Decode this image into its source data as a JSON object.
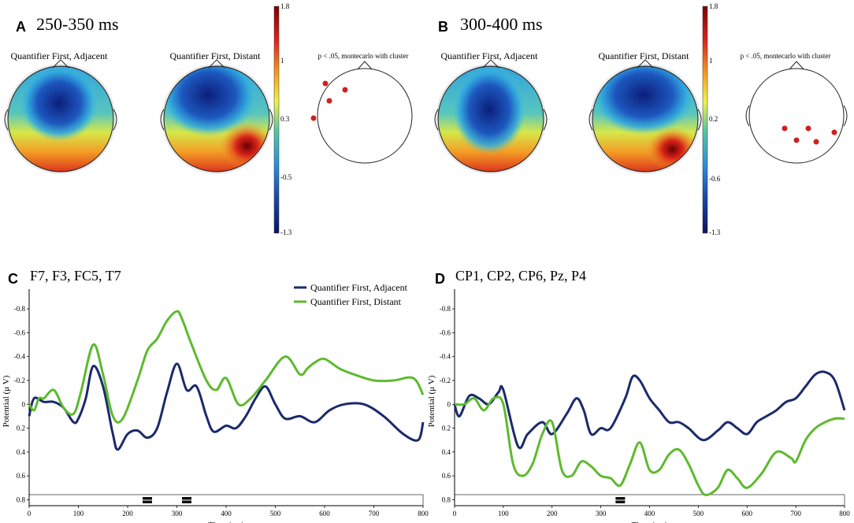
{
  "colors": {
    "adjacent": "#1b2a6b",
    "distant": "#5dba2f"
  },
  "panel_a": {
    "letter": "A",
    "title": "250-350 ms",
    "map_left_title": "Quantifier First, Adjacent",
    "map_right_title": "Quantifier First, Distant",
    "sig_title": "p < .05, montecarlo with cluster",
    "colorbar_labels": [
      "1.8",
      "1",
      "0.3",
      "-0.5",
      "-1.3"
    ]
  },
  "panel_b": {
    "letter": "B",
    "title": "300-400 ms",
    "map_left_title": "Quantifier First, Adjacent",
    "map_right_title": "Quantifier First, Distant",
    "sig_title": "p < .05, montecarlo with cluster",
    "colorbar_labels": [
      "1.8",
      "1",
      "0.2",
      "-0.6",
      "-1.3"
    ]
  },
  "chart_data": [
    {
      "type": "line",
      "panel": "C",
      "title": "F7, F3, FC5, T7",
      "xlabel": "Time (ms)",
      "ylabel": "Potential (μ V)",
      "xlim": [
        0,
        800
      ],
      "ylim": [
        -0.9,
        0.85
      ],
      "y_inverted": true,
      "xticks": [
        "0",
        "100",
        "200",
        "300",
        "400",
        "500",
        "600",
        "700",
        "800"
      ],
      "yticks": [
        "-0.8",
        "-0.6",
        "-0.4",
        "-0.2",
        "0",
        "0.2",
        "0.4",
        "0.6",
        "0.8"
      ],
      "legend": [
        "Quantifier First, Adjacent",
        "Quantifier First, Distant"
      ],
      "significant_windows_ms": [
        240,
        320
      ],
      "series": [
        {
          "name": "Quantifier First, Adjacent",
          "x": [
            0,
            10,
            30,
            50,
            70,
            90,
            100,
            115,
            130,
            150,
            170,
            180,
            200,
            220,
            240,
            260,
            280,
            300,
            320,
            340,
            360,
            375,
            400,
            420,
            440,
            460,
            480,
            500,
            520,
            550,
            580,
            610,
            640,
            680,
            720,
            760,
            790,
            800
          ],
          "y": [
            0.1,
            -0.05,
            -0.02,
            -0.02,
            0.03,
            0.15,
            0.12,
            -0.05,
            -0.32,
            -0.15,
            0.25,
            0.38,
            0.25,
            0.22,
            0.28,
            0.2,
            -0.1,
            -0.34,
            -0.12,
            -0.15,
            0.1,
            0.23,
            0.18,
            0.2,
            0.1,
            -0.05,
            -0.15,
            0.0,
            0.12,
            0.1,
            0.15,
            0.05,
            0.0,
            0.0,
            0.1,
            0.25,
            0.3,
            0.15
          ]
        },
        {
          "name": "Quantifier First, Distant",
          "x": [
            0,
            10,
            20,
            30,
            50,
            70,
            90,
            105,
            130,
            150,
            170,
            190,
            220,
            240,
            260,
            280,
            300,
            310,
            330,
            360,
            380,
            400,
            425,
            450,
            480,
            520,
            550,
            565,
            580,
            600,
            630,
            660,
            700,
            740,
            780,
            800
          ],
          "y": [
            0.0,
            0.05,
            -0.05,
            -0.05,
            -0.12,
            0.03,
            0.08,
            -0.1,
            -0.5,
            -0.25,
            0.1,
            0.12,
            -0.2,
            -0.45,
            -0.55,
            -0.7,
            -0.78,
            -0.72,
            -0.5,
            -0.2,
            -0.12,
            -0.22,
            0.0,
            -0.05,
            -0.2,
            -0.4,
            -0.25,
            -0.3,
            -0.35,
            -0.38,
            -0.3,
            -0.25,
            -0.2,
            -0.2,
            -0.22,
            -0.08
          ]
        }
      ]
    },
    {
      "type": "line",
      "panel": "D",
      "title": "CP1, CP2, CP6, Pz, P4",
      "xlabel": "Time (ms)",
      "ylabel": "Potential (μ V)",
      "xlim": [
        0,
        800
      ],
      "ylim": [
        -0.9,
        0.85
      ],
      "y_inverted": true,
      "xticks": [
        "0",
        "100",
        "200",
        "300",
        "400",
        "500",
        "600",
        "700",
        "800"
      ],
      "yticks": [
        "-0.8",
        "-0.6",
        "-0.4",
        "-0.2",
        "0",
        "0.2",
        "0.4",
        "0.6",
        "0.8"
      ],
      "significant_windows_ms": [
        340
      ],
      "series": [
        {
          "name": "Quantifier First, Adjacent",
          "x": [
            0,
            10,
            30,
            50,
            70,
            90,
            100,
            130,
            150,
            180,
            200,
            230,
            250,
            265,
            280,
            300,
            320,
            350,
            365,
            380,
            400,
            420,
            440,
            460,
            480,
            510,
            540,
            560,
            580,
            600,
            620,
            640,
            660,
            680,
            700,
            720,
            740,
            760,
            780,
            800
          ],
          "y": [
            0.0,
            0.1,
            -0.07,
            -0.05,
            0.0,
            -0.1,
            -0.12,
            0.35,
            0.25,
            0.15,
            0.25,
            0.08,
            -0.05,
            0.05,
            0.25,
            0.2,
            0.2,
            -0.05,
            -0.23,
            -0.2,
            -0.05,
            0.05,
            0.15,
            0.15,
            0.2,
            0.3,
            0.22,
            0.15,
            0.2,
            0.25,
            0.15,
            0.1,
            0.05,
            -0.02,
            -0.05,
            -0.15,
            -0.25,
            -0.27,
            -0.2,
            0.05
          ]
        },
        {
          "name": "Quantifier First, Distant",
          "x": [
            0,
            20,
            40,
            60,
            80,
            100,
            120,
            140,
            160,
            180,
            200,
            220,
            240,
            260,
            280,
            300,
            320,
            340,
            360,
            380,
            400,
            420,
            440,
            460,
            480,
            500,
            515,
            540,
            560,
            580,
            600,
            630,
            660,
            690,
            700,
            720,
            740,
            760,
            780,
            800
          ],
          "y": [
            0.0,
            0.0,
            -0.05,
            0.05,
            -0.05,
            0.0,
            0.5,
            0.6,
            0.5,
            0.25,
            0.15,
            0.55,
            0.6,
            0.48,
            0.52,
            0.6,
            0.62,
            0.68,
            0.5,
            0.32,
            0.55,
            0.55,
            0.42,
            0.38,
            0.5,
            0.68,
            0.76,
            0.7,
            0.55,
            0.62,
            0.7,
            0.58,
            0.4,
            0.45,
            0.48,
            0.3,
            0.2,
            0.15,
            0.12,
            0.12
          ]
        }
      ]
    }
  ]
}
